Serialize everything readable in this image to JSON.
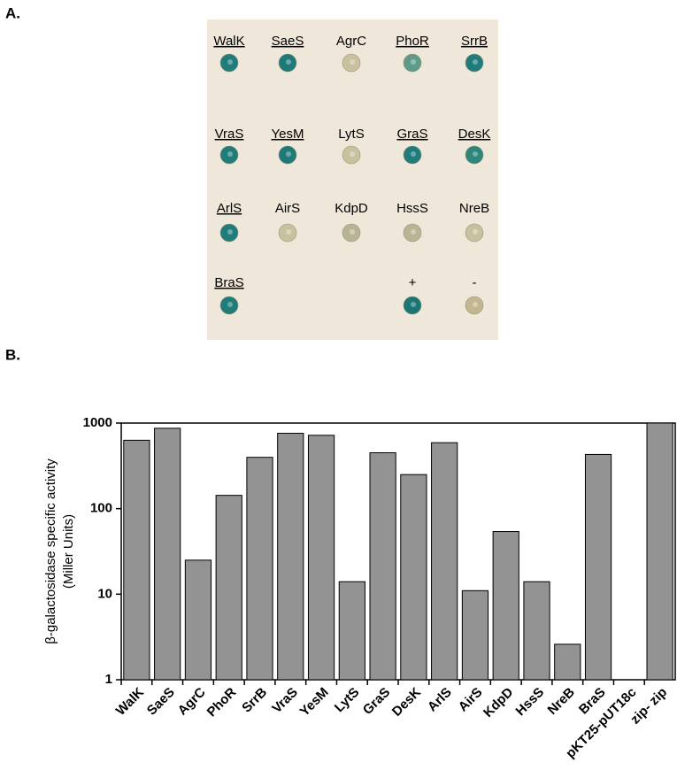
{
  "panel_a": {
    "label": "A.",
    "rows": [
      [
        {
          "label": "WalK",
          "underline": true,
          "color": "#1f7c7a"
        },
        {
          "label": "SaeS",
          "underline": true,
          "color": "#1d7a78"
        },
        {
          "label": "AgrC",
          "underline": false,
          "color": "#c9c09e"
        },
        {
          "label": "PhoR",
          "underline": true,
          "color": "#5e9a88"
        },
        {
          "label": "SrrB",
          "underline": true,
          "color": "#1f7c7a"
        }
      ],
      [
        {
          "label": "VraS",
          "underline": true,
          "color": "#1f7c7a"
        },
        {
          "label": "YesM",
          "underline": true,
          "color": "#1d7a78"
        },
        {
          "label": "LytS",
          "underline": false,
          "color": "#c9c09e"
        },
        {
          "label": "GraS",
          "underline": true,
          "color": "#1f7c7a"
        },
        {
          "label": "DesK",
          "underline": true,
          "color": "#2e857c"
        }
      ],
      [
        {
          "label": "ArlS",
          "underline": true,
          "color": "#1f7c7a"
        },
        {
          "label": "AirS",
          "underline": false,
          "color": "#c9c09e"
        },
        {
          "label": "KdpD",
          "underline": false,
          "color": "#b6b494"
        },
        {
          "label": "HssS",
          "underline": false,
          "color": "#b9b594"
        },
        {
          "label": "NreB",
          "underline": false,
          "color": "#c9c09e"
        }
      ],
      [
        {
          "label": "BraS",
          "underline": true,
          "color": "#1f7c7a"
        },
        null,
        null,
        {
          "label": "+",
          "underline": false,
          "color": "#1a7674"
        },
        {
          "label": "-",
          "underline": false,
          "color": "#c2b690"
        }
      ]
    ]
  },
  "panel_b_label": "B.",
  "chart_data": {
    "type": "bar",
    "log_scale": true,
    "color": "#939393",
    "ylabel": [
      "β-galactosidase specific activity",
      "(Miller Units)"
    ],
    "categories": [
      "WalK",
      "SaeS",
      "AgrC",
      "PhoR",
      "SrrB",
      "VraS",
      "YesM",
      "LytS",
      "GraS",
      "DesK",
      "ArlS",
      "AirS",
      "KdpD",
      "HssS",
      "NreB",
      "BraS",
      "pKT25-pUT18c",
      "zip- zip"
    ],
    "values": [
      630,
      870,
      25,
      143,
      398,
      760,
      720,
      14,
      450,
      250,
      590,
      11,
      54,
      14,
      2.6,
      430,
      null,
      1000
    ],
    "ylim": [
      1,
      1000
    ],
    "yticks": [
      1,
      10,
      100,
      1000
    ]
  }
}
